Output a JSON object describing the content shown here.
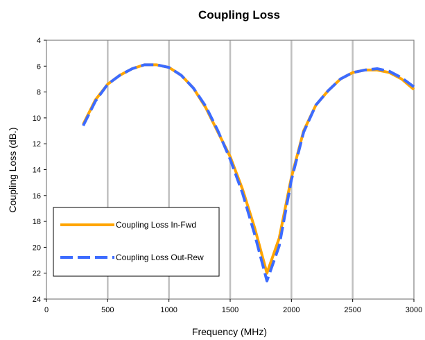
{
  "chart_data": {
    "type": "line",
    "title": "Coupling Loss",
    "xlabel": "Frequency (MHz)",
    "ylabel": "Coupling Loss (dB.)",
    "xlim": [
      0,
      3000
    ],
    "ylim": [
      4,
      24
    ],
    "y_inverted": true,
    "x_ticks": [
      0,
      500,
      1000,
      1500,
      2000,
      2500,
      3000
    ],
    "y_ticks": [
      4,
      6,
      8,
      10,
      12,
      14,
      16,
      18,
      20,
      22,
      24
    ],
    "grid": "vertical",
    "legend": "lower-left",
    "series": [
      {
        "name": "Coupling Loss In-Fwd",
        "color": "#FFA500",
        "style": "solid",
        "x": [
          300,
          400,
          500,
          600,
          700,
          800,
          900,
          1000,
          1100,
          1200,
          1300,
          1400,
          1500,
          1600,
          1700,
          1800,
          1900,
          2000,
          2100,
          2200,
          2300,
          2400,
          2500,
          2600,
          2700,
          2800,
          2900,
          3000
        ],
        "y": [
          10.5,
          8.6,
          7.4,
          6.7,
          6.2,
          5.9,
          5.9,
          6.1,
          6.7,
          7.7,
          9.2,
          11.1,
          13.0,
          15.5,
          18.5,
          22.0,
          19.3,
          14.6,
          11.0,
          9.0,
          7.9,
          7.0,
          6.5,
          6.3,
          6.3,
          6.5,
          7.0,
          7.8
        ]
      },
      {
        "name": "Coupling Loss Out-Rew",
        "color": "#3C6BFF",
        "style": "dashed",
        "x": [
          300,
          400,
          500,
          600,
          700,
          800,
          900,
          1000,
          1100,
          1200,
          1300,
          1400,
          1500,
          1600,
          1700,
          1800,
          1900,
          2000,
          2100,
          2200,
          2300,
          2400,
          2500,
          2600,
          2700,
          2800,
          2900,
          3000
        ],
        "y": [
          10.6,
          8.7,
          7.4,
          6.7,
          6.2,
          5.9,
          5.9,
          6.1,
          6.7,
          7.7,
          9.1,
          11.0,
          13.2,
          15.8,
          19.0,
          22.6,
          19.9,
          14.8,
          11.1,
          9.0,
          7.9,
          7.0,
          6.5,
          6.3,
          6.2,
          6.4,
          6.9,
          7.6
        ]
      }
    ]
  }
}
